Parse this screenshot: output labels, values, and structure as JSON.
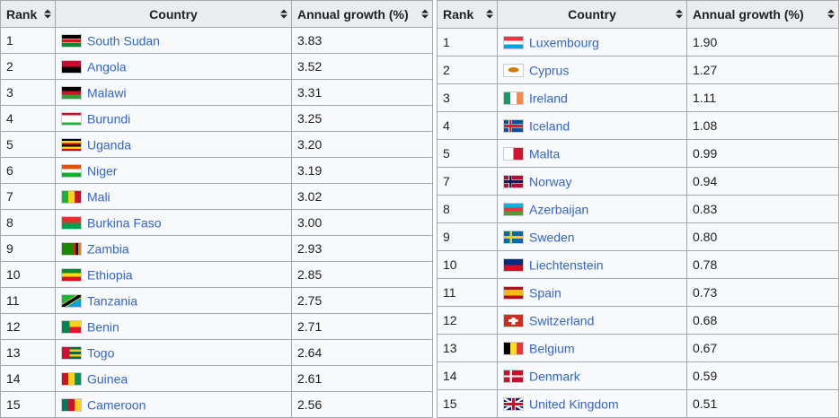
{
  "headers": {
    "rank": "Rank",
    "country": "Country",
    "growth": "Annual growth (%)"
  },
  "tables": {
    "left": [
      {
        "rank": "1",
        "country": "South Sudan",
        "growth": "3.83",
        "flag": "south-sudan-flag"
      },
      {
        "rank": "2",
        "country": "Angola",
        "growth": "3.52",
        "flag": "angola-flag"
      },
      {
        "rank": "3",
        "country": "Malawi",
        "growth": "3.31",
        "flag": "malawi-flag"
      },
      {
        "rank": "4",
        "country": "Burundi",
        "growth": "3.25",
        "flag": "burundi-flag"
      },
      {
        "rank": "5",
        "country": "Uganda",
        "growth": "3.20",
        "flag": "uganda-flag"
      },
      {
        "rank": "6",
        "country": "Niger",
        "growth": "3.19",
        "flag": "niger-flag"
      },
      {
        "rank": "7",
        "country": "Mali",
        "growth": "3.02",
        "flag": "mali-flag"
      },
      {
        "rank": "8",
        "country": "Burkina Faso",
        "growth": "3.00",
        "flag": "burkina-faso-flag"
      },
      {
        "rank": "9",
        "country": "Zambia",
        "growth": "2.93",
        "flag": "zambia-flag"
      },
      {
        "rank": "10",
        "country": "Ethiopia",
        "growth": "2.85",
        "flag": "ethiopia-flag"
      },
      {
        "rank": "11",
        "country": "Tanzania",
        "growth": "2.75",
        "flag": "tanzania-flag"
      },
      {
        "rank": "12",
        "country": "Benin",
        "growth": "2.71",
        "flag": "benin-flag"
      },
      {
        "rank": "13",
        "country": "Togo",
        "growth": "2.64",
        "flag": "togo-flag"
      },
      {
        "rank": "14",
        "country": "Guinea",
        "growth": "2.61",
        "flag": "guinea-flag"
      },
      {
        "rank": "15",
        "country": "Cameroon",
        "growth": "2.56",
        "flag": "cameroon-flag"
      }
    ],
    "right": [
      {
        "rank": "1",
        "country": "Luxembourg",
        "growth": "1.90",
        "flag": "luxembourg-flag"
      },
      {
        "rank": "2",
        "country": "Cyprus",
        "growth": "1.27",
        "flag": "cyprus-flag"
      },
      {
        "rank": "3",
        "country": "Ireland",
        "growth": "1.11",
        "flag": "ireland-flag"
      },
      {
        "rank": "4",
        "country": "Iceland",
        "growth": "1.08",
        "flag": "iceland-flag"
      },
      {
        "rank": "5",
        "country": "Malta",
        "growth": "0.99",
        "flag": "malta-flag"
      },
      {
        "rank": "7",
        "country": "Norway",
        "growth": "0.94",
        "flag": "norway-flag"
      },
      {
        "rank": "8",
        "country": "Azerbaijan",
        "growth": "0.83",
        "flag": "azerbaijan-flag"
      },
      {
        "rank": "9",
        "country": "Sweden",
        "growth": "0.80",
        "flag": "sweden-flag"
      },
      {
        "rank": "10",
        "country": "Liechtenstein",
        "growth": "0.78",
        "flag": "liechtenstein-flag"
      },
      {
        "rank": "11",
        "country": "Spain",
        "growth": "0.73",
        "flag": "spain-flag"
      },
      {
        "rank": "12",
        "country": "Switzerland",
        "growth": "0.68",
        "flag": "switzerland-flag"
      },
      {
        "rank": "13",
        "country": "Belgium",
        "growth": "0.67",
        "flag": "belgium-flag"
      },
      {
        "rank": "14",
        "country": "Denmark",
        "growth": "0.59",
        "flag": "denmark-flag"
      },
      {
        "rank": "15",
        "country": "United Kingdom",
        "growth": "0.51",
        "flag": "united-kingdom-flag"
      }
    ]
  },
  "colors": {
    "link": "#3366cc",
    "header_bg": "#eaecf0",
    "cell_bg": "#f8f9fa",
    "border": "#a2a9b1"
  }
}
